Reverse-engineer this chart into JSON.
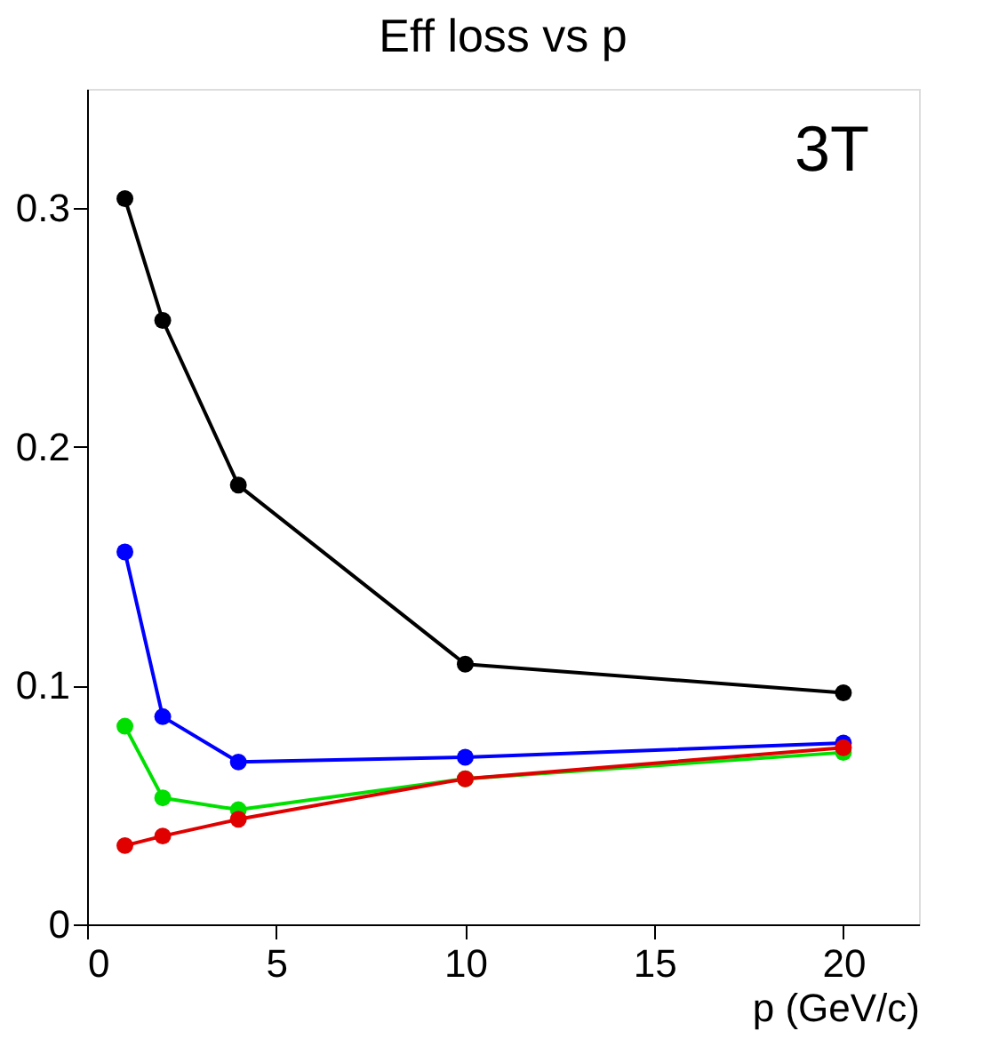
{
  "chart_data": {
    "type": "line",
    "title": "Eff loss vs p",
    "xlabel": "p (GeV/c)",
    "x": [
      1,
      2,
      4,
      10,
      20
    ],
    "series": [
      {
        "color": "#000000",
        "values": [
          0.304,
          0.253,
          0.184,
          0.109,
          0.097
        ]
      },
      {
        "color": "#0000ff",
        "values": [
          0.156,
          0.087,
          0.068,
          0.07,
          0.076
        ]
      },
      {
        "color": "#00e000",
        "values": [
          0.083,
          0.053,
          0.048,
          0.061,
          0.072
        ]
      },
      {
        "color": "#e00000",
        "values": [
          0.033,
          0.037,
          0.044,
          0.061,
          0.074
        ]
      }
    ],
    "xlim": [
      0,
      22
    ],
    "xticks": [
      0,
      5,
      10,
      15,
      20
    ],
    "ylim": [
      0,
      0.35
    ],
    "yticks": [
      0,
      0.1,
      0.2,
      0.3
    ],
    "annotations": [
      "3T"
    ],
    "marker": "circle",
    "line_style": "solid",
    "grid": false,
    "legend": false
  }
}
